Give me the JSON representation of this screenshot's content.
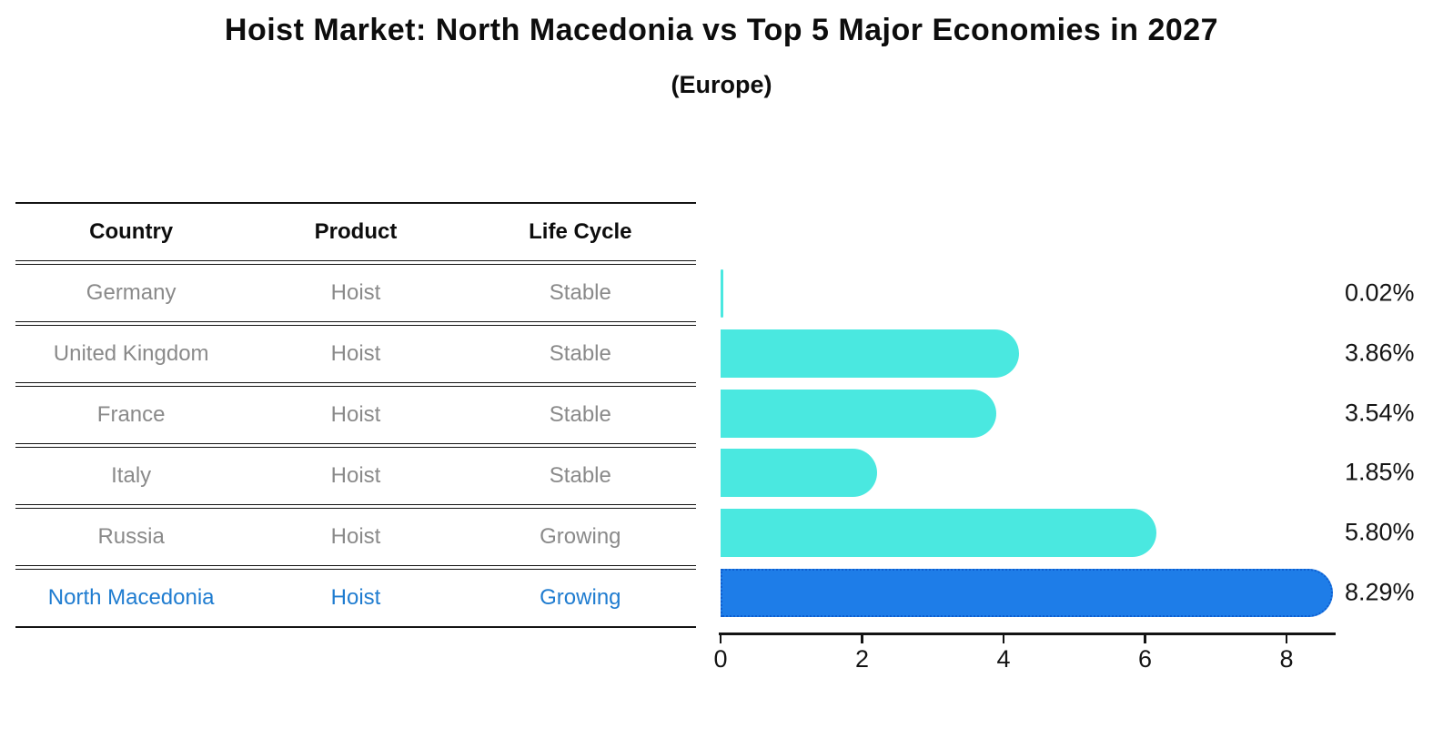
{
  "title": "Hoist Market: North Macedonia vs Top 5 Major Economies in 2027",
  "subtitle": "(Europe)",
  "table": {
    "headers": [
      "Country",
      "Product",
      "Life Cycle"
    ],
    "rows": [
      {
        "country": "Germany",
        "product": "Hoist",
        "life_cycle": "Stable",
        "highlight": false
      },
      {
        "country": "United Kingdom",
        "product": "Hoist",
        "life_cycle": "Stable",
        "highlight": false
      },
      {
        "country": "France",
        "product": "Hoist",
        "life_cycle": "Stable",
        "highlight": false
      },
      {
        "country": "Italy",
        "product": "Hoist",
        "life_cycle": "Stable",
        "highlight": false
      },
      {
        "country": "Russia",
        "product": "Hoist",
        "life_cycle": "Growing",
        "highlight": false
      },
      {
        "country": "North Macedonia",
        "product": "Hoist",
        "life_cycle": "Growing",
        "highlight": true
      }
    ]
  },
  "chart_data": {
    "type": "bar",
    "orientation": "horizontal",
    "title": "Hoist Market: North Macedonia vs Top 5 Major Economies in 2027 (Europe)",
    "categories": [
      "Germany",
      "United Kingdom",
      "France",
      "Italy",
      "Russia",
      "North Macedonia"
    ],
    "values": [
      0.02,
      3.86,
      3.54,
      1.85,
      5.8,
      8.29
    ],
    "value_labels": [
      "0.02%",
      "3.86%",
      "3.54%",
      "1.85%",
      "5.80%",
      "8.29%"
    ],
    "unit": "%",
    "xlabel": "",
    "ylabel": "",
    "xlim": [
      0,
      8.7
    ],
    "x_ticks": [
      0,
      2,
      4,
      6,
      8
    ],
    "x_tick_labels": [
      "0",
      "2",
      "4",
      "6",
      "8"
    ],
    "grid": false,
    "legend": "none",
    "bar_color": "#4ae8e0",
    "highlight_bar_color": "#1e7de8",
    "highlight_index": 5
  }
}
